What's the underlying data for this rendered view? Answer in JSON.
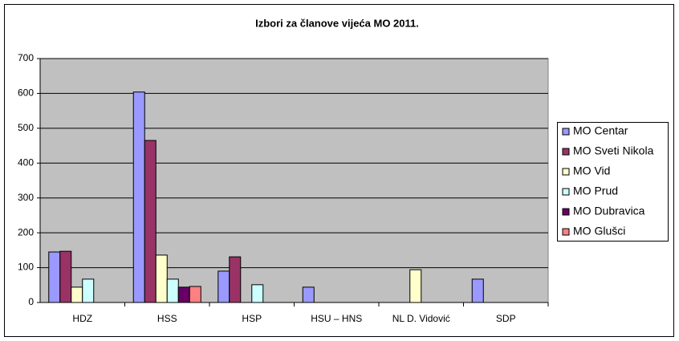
{
  "chart_data": {
    "type": "bar",
    "title": "Izbori za članove vijeća MO 2011.",
    "categories": [
      "HDZ",
      "HSS",
      "HSP",
      "HSU – HNS",
      "NL D. Vidović",
      "SDP"
    ],
    "series": [
      {
        "name": "MO Centar",
        "color": "#9999ff",
        "values": [
          145,
          604,
          90,
          44,
          null,
          67
        ]
      },
      {
        "name": "MO Sveti Nikola",
        "color": "#993366",
        "values": [
          147,
          465,
          131,
          null,
          null,
          null
        ]
      },
      {
        "name": "MO Vid",
        "color": "#ffffcc",
        "values": [
          44,
          136,
          null,
          null,
          94,
          null
        ]
      },
      {
        "name": "MO Prud",
        "color": "#ccffff",
        "values": [
          67,
          67,
          51,
          null,
          null,
          null
        ]
      },
      {
        "name": "MO Dubravica",
        "color": "#660066",
        "values": [
          null,
          44,
          null,
          null,
          null,
          null
        ]
      },
      {
        "name": "MO Glušci",
        "color": "#ff8080",
        "values": [
          null,
          46,
          null,
          null,
          null,
          null
        ]
      }
    ],
    "ylim": [
      0,
      700
    ],
    "yticks": [
      0,
      100,
      200,
      300,
      400,
      500,
      600,
      700
    ],
    "grid": true,
    "legend": "right"
  }
}
